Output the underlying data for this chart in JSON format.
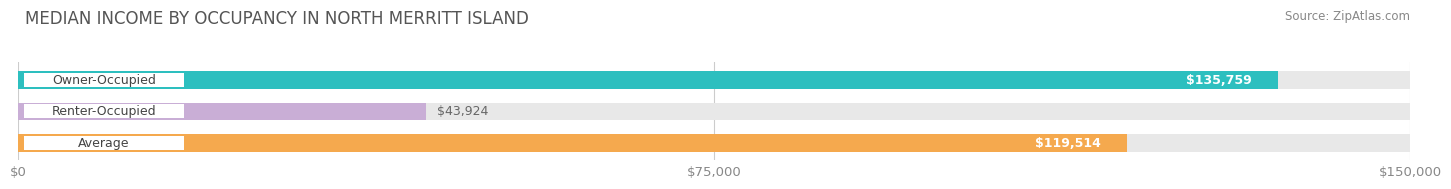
{
  "title": "MEDIAN INCOME BY OCCUPANCY IN NORTH MERRITT ISLAND",
  "source": "Source: ZipAtlas.com",
  "categories": [
    "Owner-Occupied",
    "Renter-Occupied",
    "Average"
  ],
  "values": [
    135759,
    43924,
    119514
  ],
  "bar_colors": [
    "#2dbfbf",
    "#c9aed6",
    "#f5a94e"
  ],
  "bar_bg_color": "#e8e8e8",
  "x_max": 150000,
  "x_ticks": [
    0,
    75000,
    150000
  ],
  "x_tick_labels": [
    "$0",
    "$75,000",
    "$150,000"
  ],
  "value_labels": [
    "$135,759",
    "$43,924",
    "$119,514"
  ],
  "title_fontsize": 12,
  "source_fontsize": 8.5,
  "tick_fontsize": 9.5,
  "bar_label_fontsize": 9,
  "value_label_fontsize": 9,
  "fig_bg_color": "#ffffff"
}
